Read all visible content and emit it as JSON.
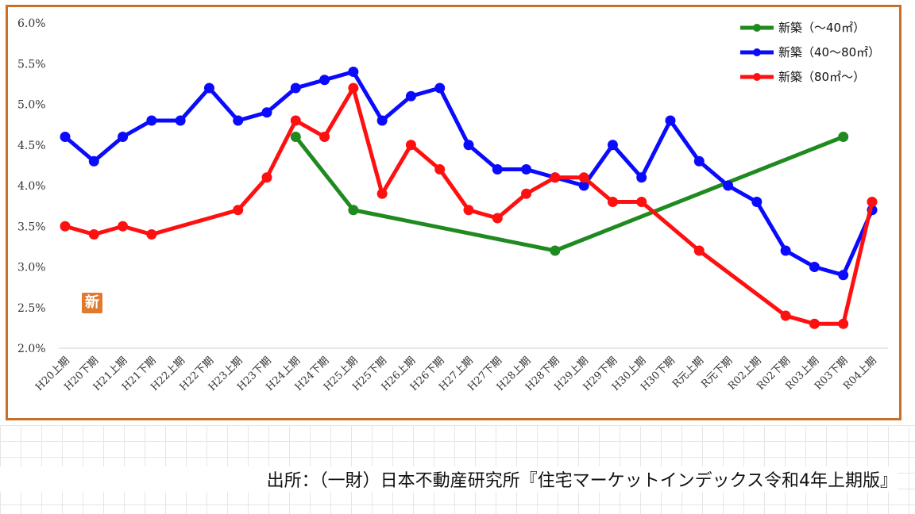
{
  "badge_text": "新",
  "source_text": "出所：（一財）日本不動産研究所『住宅マーケットインデックス令和4年上期版』",
  "chart_data": {
    "type": "line",
    "categories": [
      "H20上期",
      "H20下期",
      "H21上期",
      "H21下期",
      "H22上期",
      "H22下期",
      "H23上期",
      "H23下期",
      "H24上期",
      "H24下期",
      "H25上期",
      "H25下期",
      "H26上期",
      "H26下期",
      "H27上期",
      "H27下期",
      "H28上期",
      "H28下期",
      "H29上期",
      "H29下期",
      "H30上期",
      "H30下期",
      "R元上期",
      "R元下期",
      "R02上期",
      "R02下期",
      "R03上期",
      "R03下期",
      "R04上期"
    ],
    "ylim": [
      2.0,
      6.0
    ],
    "yticks": [
      "2.0%",
      "2.5%",
      "3.0%",
      "3.5%",
      "4.0%",
      "4.5%",
      "5.0%",
      "5.5%",
      "6.0%"
    ],
    "ytick_values": [
      2.0,
      2.5,
      3.0,
      3.5,
      4.0,
      4.5,
      5.0,
      5.5,
      6.0
    ],
    "legend_position": "top-right",
    "series": [
      {
        "name": "新築（～40㎡）",
        "color": "#1f8a1f",
        "values": [
          null,
          null,
          null,
          null,
          null,
          null,
          null,
          null,
          4.6,
          null,
          3.7,
          null,
          null,
          null,
          null,
          null,
          null,
          3.2,
          null,
          null,
          null,
          null,
          null,
          null,
          null,
          null,
          null,
          4.6,
          null
        ]
      },
      {
        "name": "新築（40～80㎡）",
        "color": "#0a0aff",
        "values": [
          4.6,
          4.3,
          4.6,
          4.8,
          4.8,
          5.2,
          4.8,
          4.9,
          5.2,
          5.3,
          5.4,
          4.8,
          5.1,
          5.2,
          4.5,
          4.2,
          4.2,
          4.1,
          4.0,
          4.5,
          4.1,
          4.8,
          4.3,
          4.0,
          3.8,
          3.2,
          3.0,
          2.9,
          3.7
        ]
      },
      {
        "name": "新築（80㎡～）",
        "color": "#ff1010",
        "values": [
          3.5,
          3.4,
          3.5,
          3.4,
          null,
          null,
          3.7,
          4.1,
          4.8,
          4.6,
          5.2,
          3.9,
          4.5,
          4.2,
          3.7,
          3.6,
          3.9,
          4.1,
          4.1,
          3.8,
          3.8,
          null,
          3.2,
          null,
          null,
          2.4,
          2.3,
          2.3,
          3.8
        ]
      }
    ]
  }
}
